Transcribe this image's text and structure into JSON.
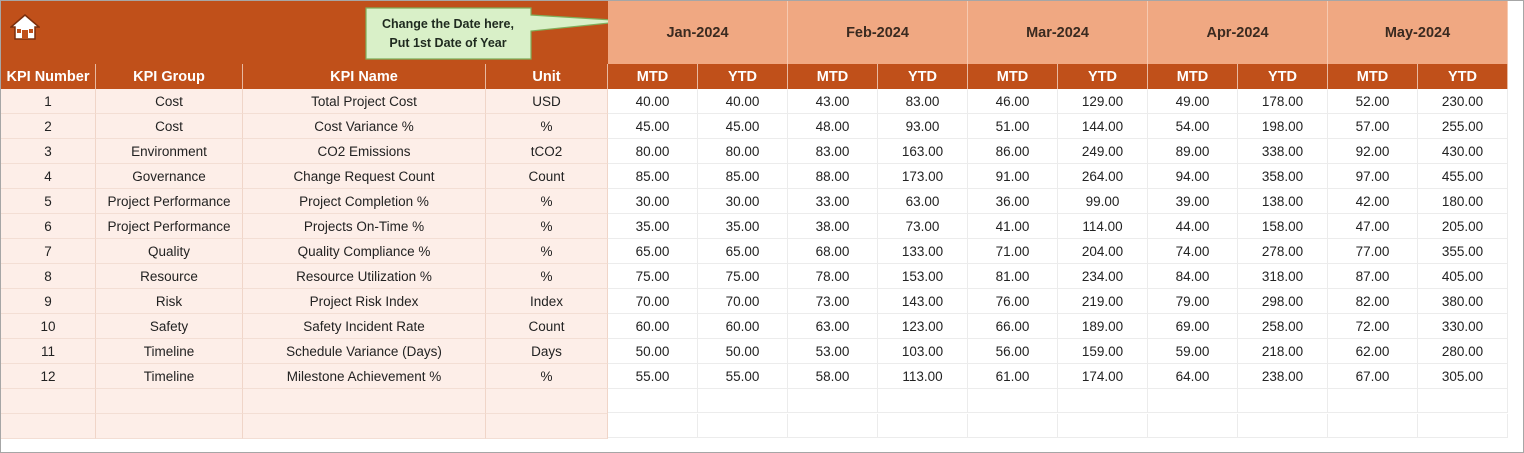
{
  "header": {
    "callout": [
      "Change the Date here,",
      "Put 1st Date of Year"
    ],
    "months": [
      "Jan-2024",
      "Feb-2024",
      "Mar-2024",
      "Apr-2024",
      "May-2024"
    ]
  },
  "table": {
    "columns": [
      "KPI Number",
      "KPI Group",
      "KPI Name",
      "Unit",
      "MTD",
      "YTD",
      "MTD",
      "YTD",
      "MTD",
      "YTD",
      "MTD",
      "YTD",
      "MTD",
      "YTD"
    ],
    "rows": [
      [
        "1",
        "Cost",
        "Total Project Cost",
        "USD",
        "40.00",
        "40.00",
        "43.00",
        "83.00",
        "46.00",
        "129.00",
        "49.00",
        "178.00",
        "52.00",
        "230.00"
      ],
      [
        "2",
        "Cost",
        "Cost Variance %",
        "%",
        "45.00",
        "45.00",
        "48.00",
        "93.00",
        "51.00",
        "144.00",
        "54.00",
        "198.00",
        "57.00",
        "255.00"
      ],
      [
        "3",
        "Environment",
        "CO2 Emissions",
        "tCO2",
        "80.00",
        "80.00",
        "83.00",
        "163.00",
        "86.00",
        "249.00",
        "89.00",
        "338.00",
        "92.00",
        "430.00"
      ],
      [
        "4",
        "Governance",
        "Change Request Count",
        "Count",
        "85.00",
        "85.00",
        "88.00",
        "173.00",
        "91.00",
        "264.00",
        "94.00",
        "358.00",
        "97.00",
        "455.00"
      ],
      [
        "5",
        "Project Performance",
        "Project Completion %",
        "%",
        "30.00",
        "30.00",
        "33.00",
        "63.00",
        "36.00",
        "99.00",
        "39.00",
        "138.00",
        "42.00",
        "180.00"
      ],
      [
        "6",
        "Project Performance",
        "Projects On-Time %",
        "%",
        "35.00",
        "35.00",
        "38.00",
        "73.00",
        "41.00",
        "114.00",
        "44.00",
        "158.00",
        "47.00",
        "205.00"
      ],
      [
        "7",
        "Quality",
        "Quality Compliance %",
        "%",
        "65.00",
        "65.00",
        "68.00",
        "133.00",
        "71.00",
        "204.00",
        "74.00",
        "278.00",
        "77.00",
        "355.00"
      ],
      [
        "8",
        "Resource",
        "Resource Utilization %",
        "%",
        "75.00",
        "75.00",
        "78.00",
        "153.00",
        "81.00",
        "234.00",
        "84.00",
        "318.00",
        "87.00",
        "405.00"
      ],
      [
        "9",
        "Risk",
        "Project Risk Index",
        "Index",
        "70.00",
        "70.00",
        "73.00",
        "143.00",
        "76.00",
        "219.00",
        "79.00",
        "298.00",
        "82.00",
        "380.00"
      ],
      [
        "10",
        "Safety",
        "Safety Incident Rate",
        "Count",
        "60.00",
        "60.00",
        "63.00",
        "123.00",
        "66.00",
        "189.00",
        "69.00",
        "258.00",
        "72.00",
        "330.00"
      ],
      [
        "11",
        "Timeline",
        "Schedule Variance (Days)",
        "Days",
        "50.00",
        "50.00",
        "53.00",
        "103.00",
        "56.00",
        "159.00",
        "59.00",
        "218.00",
        "62.00",
        "280.00"
      ],
      [
        "12",
        "Timeline",
        "Milestone Achievement %",
        "%",
        "55.00",
        "55.00",
        "58.00",
        "113.00",
        "61.00",
        "174.00",
        "64.00",
        "238.00",
        "67.00",
        "305.00"
      ]
    ]
  }
}
